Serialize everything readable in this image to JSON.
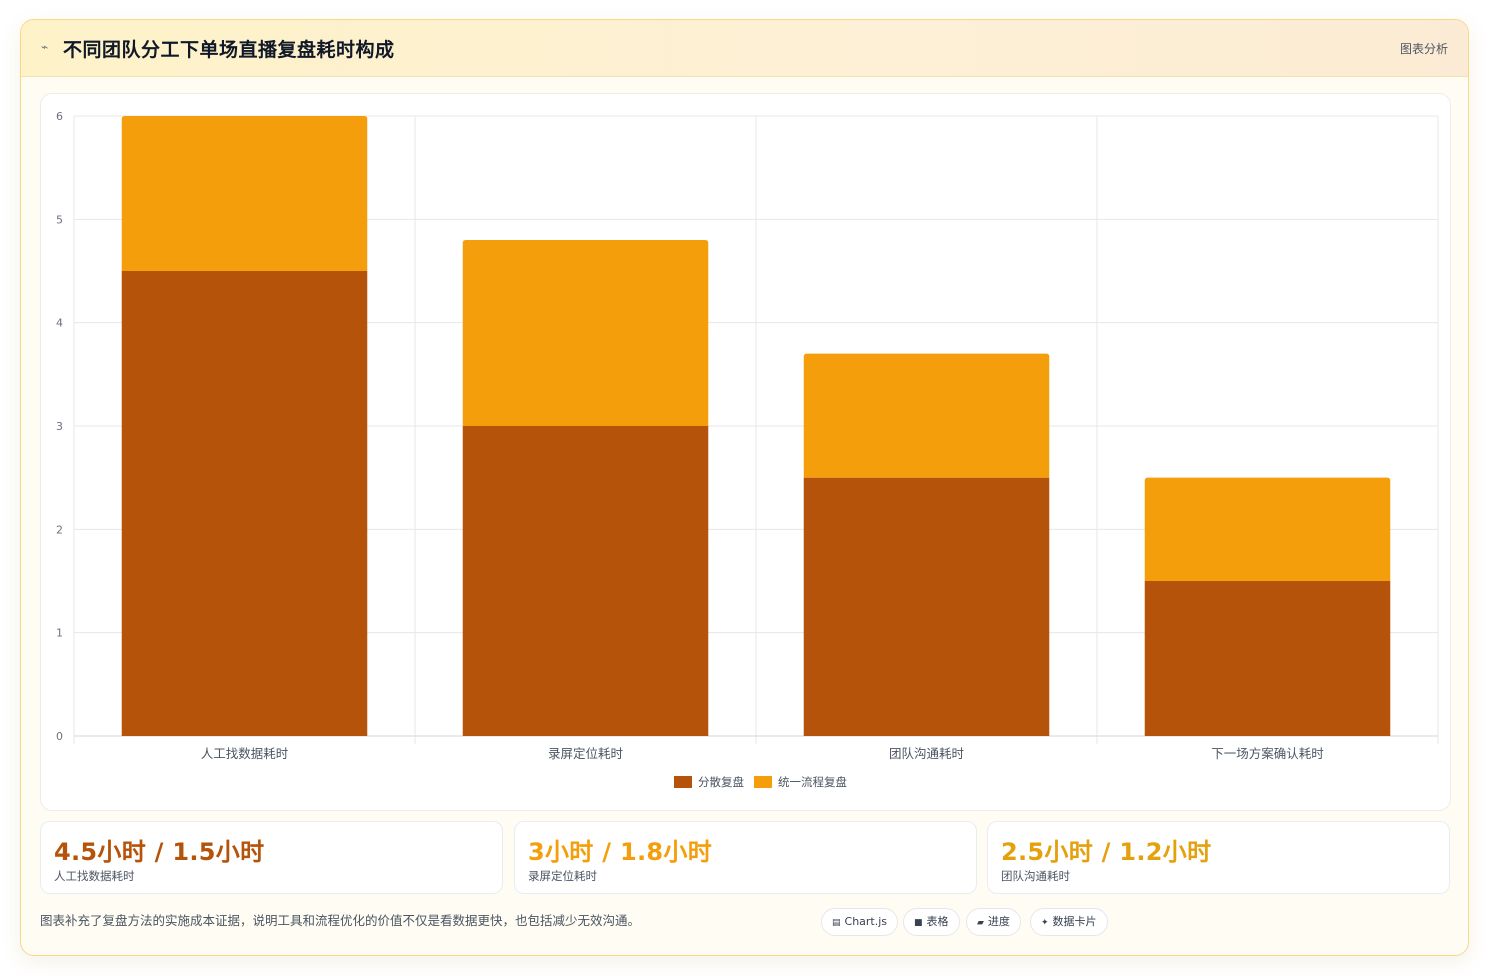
{
  "header": {
    "icon": "chart-line-icon",
    "title": "不同团队分工下单场直播复盘耗时构成",
    "tag": "图表分析"
  },
  "chart_data": {
    "type": "bar",
    "stacked": true,
    "categories": [
      "人工找数据耗时",
      "录屏定位耗时",
      "团队沟通耗时",
      "下一场方案确认耗时"
    ],
    "series": [
      {
        "name": "分散复盘",
        "color": "#b45309",
        "values": [
          4.5,
          3,
          2.5,
          1.5
        ]
      },
      {
        "name": "统一流程复盘",
        "color": "#f59e0b",
        "values": [
          1.5,
          1.8,
          1.2,
          1
        ]
      }
    ],
    "ylim": [
      0,
      6
    ],
    "yticks": [
      "0",
      "1",
      "2",
      "3",
      "4",
      "5",
      "6"
    ],
    "grid": true,
    "legend": "bottom"
  },
  "stats": [
    {
      "value": "4.5小时 / 1.5小时",
      "label": "人工找数据耗时",
      "color": "#b45309"
    },
    {
      "value": "3小时 / 1.8小时",
      "label": "录屏定位耗时",
      "color": "#f59e0b"
    },
    {
      "value": "2.5小时 / 1.2小时",
      "label": "团队沟通耗时",
      "color": "#e5a00d"
    }
  ],
  "footer": {
    "note": "图表补充了复盘方法的实施成本证据，说明工具和流程优化的价值不仅是看数据更快，也包括减少无效沟通。",
    "chips": [
      {
        "icon": "chart-icon",
        "label": "Chart.js"
      },
      {
        "icon": "table-icon",
        "label": "表格"
      },
      {
        "icon": "progress-icon",
        "label": "进度"
      },
      {
        "icon": "sparkle-icon",
        "label": "数据卡片"
      }
    ]
  }
}
